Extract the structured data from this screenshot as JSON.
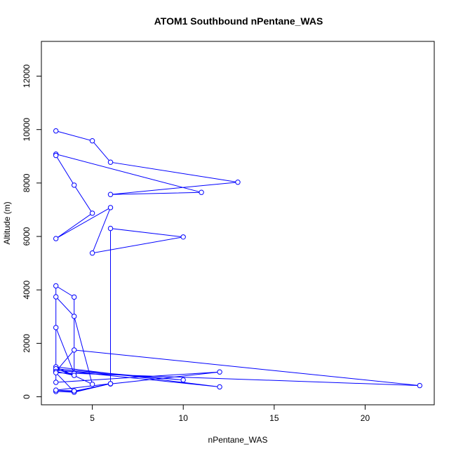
{
  "chart_data": {
    "type": "line",
    "title": "ATOM1 Southbound nPentane_WAS",
    "xlabel": "nPentane_WAS",
    "ylabel": "Altitude (m)",
    "xlim": [
      2.2,
      23.8
    ],
    "ylim": [
      -300,
      13300
    ],
    "xticks": [
      "5",
      "10",
      "15",
      "20"
    ],
    "xtick_values": [
      5,
      10,
      15,
      20
    ],
    "yticks": [
      "0",
      "2000",
      "4000",
      "6000",
      "8000",
      "10000",
      "12000"
    ],
    "ytick_values": [
      0,
      2000,
      4000,
      6000,
      8000,
      10000,
      12000
    ],
    "grid": false,
    "marker": "open-circle",
    "color": "#0000ff",
    "series": [
      {
        "x": [
          3,
          5,
          6,
          13,
          6,
          11,
          3,
          3,
          4,
          5,
          3,
          6,
          5,
          10,
          6,
          6,
          12,
          3,
          3,
          4,
          4,
          3,
          3,
          4,
          5,
          3,
          12,
          3,
          10,
          3,
          4,
          3,
          4,
          23,
          3,
          4,
          6,
          4,
          3,
          4,
          6,
          3,
          4
        ],
        "y": [
          9950,
          9580,
          8780,
          8030,
          7570,
          7650,
          9080,
          9030,
          7920,
          6870,
          5920,
          7080,
          5380,
          5980,
          6300,
          480,
          930,
          540,
          4150,
          3730,
          870,
          2590,
          3740,
          3010,
          470,
          1120,
          370,
          1000,
          630,
          1050,
          800,
          950,
          1750,
          420,
          900,
          190,
          490,
          210,
          200,
          170,
          490,
          250,
          220
        ]
      }
    ]
  }
}
